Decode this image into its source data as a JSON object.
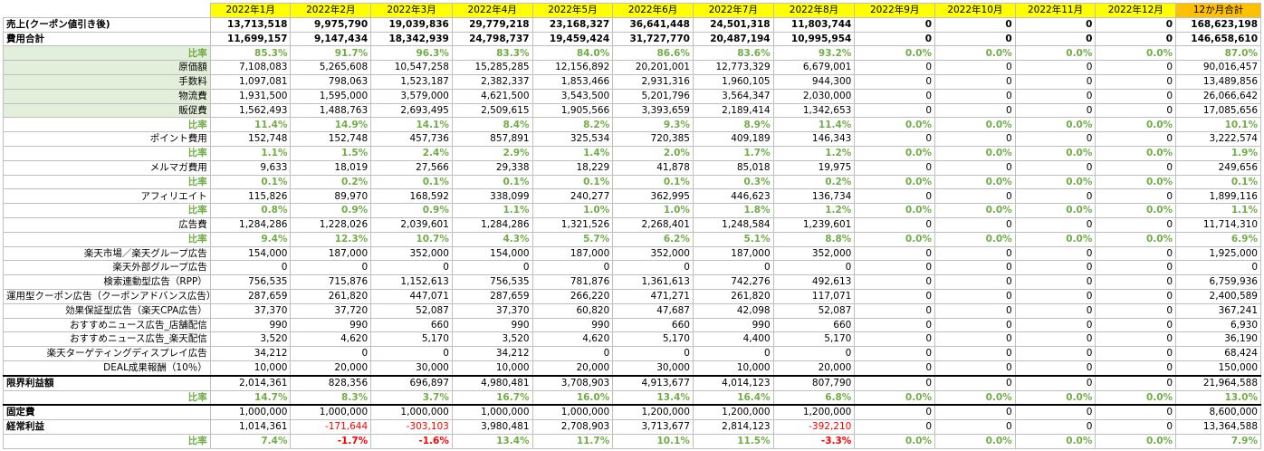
{
  "header": {
    "months": [
      "2022年1月",
      "2022年2月",
      "2022年3月",
      "2022年4月",
      "2022年5月",
      "2022年6月",
      "2022年7月",
      "2022年8月",
      "2022年9月",
      "2022年10月",
      "2022年11月",
      "2022年12月"
    ],
    "total_label": "12か月合計"
  },
  "rows": [
    {
      "label": "売上(クーポン値引き後)",
      "style": "bold left",
      "values": [
        "13,713,518",
        "9,975,790",
        "19,039,836",
        "29,779,218",
        "23,168,327",
        "36,641,448",
        "24,501,318",
        "11,803,744",
        "0",
        "0",
        "0",
        "0"
      ],
      "total": "168,623,198"
    },
    {
      "label": "費用合計",
      "style": "bold left",
      "values": [
        "11,699,157",
        "9,147,434",
        "18,342,939",
        "24,798,737",
        "19,459,424",
        "31,727,770",
        "20,487,194",
        "10,995,954",
        "0",
        "0",
        "0",
        "0"
      ],
      "total": "146,658,610"
    },
    {
      "label": "比率",
      "style": "ratio green",
      "values": [
        "85.3%",
        "91.7%",
        "96.3%",
        "83.3%",
        "84.0%",
        "86.6%",
        "83.6%",
        "93.2%",
        "0.0%",
        "0.0%",
        "0.0%",
        "0.0%"
      ],
      "total": "87.0%"
    },
    {
      "label": "原価額",
      "style": "green",
      "values": [
        "7,108,083",
        "5,265,608",
        "10,547,258",
        "15,285,285",
        "12,156,892",
        "20,201,001",
        "12,773,329",
        "6,679,001",
        "0",
        "0",
        "0",
        "0"
      ],
      "total": "90,016,457"
    },
    {
      "label": "手数料",
      "style": "green",
      "values": [
        "1,097,081",
        "798,063",
        "1,523,187",
        "2,382,337",
        "1,853,466",
        "2,931,316",
        "1,960,105",
        "944,300",
        "0",
        "0",
        "0",
        "0"
      ],
      "total": "13,489,856"
    },
    {
      "label": "物流費",
      "style": "green",
      "values": [
        "1,931,500",
        "1,595,000",
        "3,579,000",
        "4,621,500",
        "3,543,500",
        "5,201,796",
        "3,564,347",
        "2,030,000",
        "0",
        "0",
        "0",
        "0"
      ],
      "total": "26,066,642"
    },
    {
      "label": "販促費",
      "style": "green",
      "values": [
        "1,562,493",
        "1,488,763",
        "2,693,495",
        "2,509,615",
        "1,905,566",
        "3,393,659",
        "2,189,414",
        "1,342,653",
        "0",
        "0",
        "0",
        "0"
      ],
      "total": "17,085,656"
    },
    {
      "label": "比率",
      "style": "ratio",
      "values": [
        "11.4%",
        "14.9%",
        "14.1%",
        "8.4%",
        "8.2%",
        "9.3%",
        "8.9%",
        "11.4%",
        "0.0%",
        "0.0%",
        "0.0%",
        "0.0%"
      ],
      "total": "10.1%"
    },
    {
      "label": "ポイント費用",
      "style": "",
      "values": [
        "152,748",
        "152,748",
        "457,736",
        "857,891",
        "325,534",
        "720,385",
        "409,189",
        "146,343",
        "0",
        "0",
        "0",
        "0"
      ],
      "total": "3,222,574"
    },
    {
      "label": "比率",
      "style": "ratio",
      "values": [
        "1.1%",
        "1.5%",
        "2.4%",
        "2.9%",
        "1.4%",
        "2.0%",
        "1.7%",
        "1.2%",
        "0.0%",
        "0.0%",
        "0.0%",
        "0.0%"
      ],
      "total": "1.9%"
    },
    {
      "label": "メルマガ費用",
      "style": "",
      "values": [
        "9,633",
        "18,019",
        "27,566",
        "29,338",
        "18,229",
        "41,878",
        "85,018",
        "19,975",
        "0",
        "0",
        "0",
        "0"
      ],
      "total": "249,656"
    },
    {
      "label": "比率",
      "style": "ratio",
      "values": [
        "0.1%",
        "0.2%",
        "0.1%",
        "0.1%",
        "0.1%",
        "0.1%",
        "0.3%",
        "0.2%",
        "0.0%",
        "0.0%",
        "0.0%",
        "0.0%"
      ],
      "total": "0.1%"
    },
    {
      "label": "アフィリエイト",
      "style": "",
      "values": [
        "115,826",
        "89,970",
        "168,592",
        "338,099",
        "240,277",
        "362,995",
        "446,623",
        "136,734",
        "0",
        "0",
        "0",
        "0"
      ],
      "total": "1,899,116"
    },
    {
      "label": "比率",
      "style": "ratio",
      "values": [
        "0.8%",
        "0.9%",
        "0.9%",
        "1.1%",
        "1.0%",
        "1.0%",
        "1.8%",
        "1.2%",
        "0.0%",
        "0.0%",
        "0.0%",
        "0.0%"
      ],
      "total": "1.1%"
    },
    {
      "label": "広告費",
      "style": "",
      "values": [
        "1,284,286",
        "1,228,026",
        "2,039,601",
        "1,284,286",
        "1,321,526",
        "2,268,401",
        "1,248,584",
        "1,239,601",
        "0",
        "0",
        "0",
        "0"
      ],
      "total": "11,714,310"
    },
    {
      "label": "比率",
      "style": "ratio",
      "values": [
        "9.4%",
        "12.3%",
        "10.7%",
        "4.3%",
        "5.7%",
        "6.2%",
        "5.1%",
        "8.8%",
        "0.0%",
        "0.0%",
        "0.0%",
        "0.0%"
      ],
      "total": "6.9%"
    },
    {
      "label": "楽天市場／楽天グループ広告",
      "style": "",
      "values": [
        "154,000",
        "187,000",
        "352,000",
        "154,000",
        "187,000",
        "352,000",
        "187,000",
        "352,000",
        "0",
        "0",
        "0",
        "0"
      ],
      "total": "1,925,000"
    },
    {
      "label": "楽天外部グループ広告",
      "style": "",
      "values": [
        "0",
        "0",
        "0",
        "0",
        "0",
        "0",
        "0",
        "0",
        "0",
        "0",
        "0",
        "0"
      ],
      "total": "0"
    },
    {
      "label": "検索連動型広告（RPP）",
      "style": "",
      "values": [
        "756,535",
        "715,876",
        "1,152,613",
        "756,535",
        "781,876",
        "1,361,613",
        "742,276",
        "492,613",
        "0",
        "0",
        "0",
        "0"
      ],
      "total": "6,759,936"
    },
    {
      "label": "運用型クーポン広告（クーポンアドバンス広告）",
      "style": "",
      "values": [
        "287,659",
        "261,820",
        "447,071",
        "287,659",
        "266,220",
        "471,271",
        "261,820",
        "117,071",
        "0",
        "0",
        "0",
        "0"
      ],
      "total": "2,400,589"
    },
    {
      "label": "効果保証型広告（楽天CPA広告）",
      "style": "",
      "values": [
        "37,370",
        "37,720",
        "52,087",
        "37,370",
        "60,820",
        "47,687",
        "42,098",
        "52,087",
        "0",
        "0",
        "0",
        "0"
      ],
      "total": "367,241"
    },
    {
      "label": "おすすめニュース広告_店舗配信",
      "style": "",
      "values": [
        "990",
        "990",
        "660",
        "990",
        "990",
        "660",
        "990",
        "660",
        "0",
        "0",
        "0",
        "0"
      ],
      "total": "6,930"
    },
    {
      "label": "おすすめニュース広告_楽天配信",
      "style": "",
      "values": [
        "3,520",
        "4,620",
        "5,170",
        "3,520",
        "4,620",
        "5,170",
        "4,400",
        "5,170",
        "0",
        "0",
        "0",
        "0"
      ],
      "total": "36,190"
    },
    {
      "label": "楽天ターゲティングディスプレイ広告",
      "style": "",
      "values": [
        "34,212",
        "0",
        "0",
        "34,212",
        "0",
        "0",
        "0",
        "0",
        "0",
        "0",
        "0",
        "0"
      ],
      "total": "68,424"
    },
    {
      "label": "DEAL成果報酬（10％）",
      "style": "",
      "values": [
        "10,000",
        "20,000",
        "30,000",
        "10,000",
        "20,000",
        "30,000",
        "10,000",
        "20,000",
        "0",
        "0",
        "0",
        "0"
      ],
      "total": "150,000"
    },
    {
      "label": "限界利益額",
      "style": "bold-label left sep",
      "values": [
        "2,014,361",
        "828,356",
        "696,897",
        "4,980,481",
        "3,708,903",
        "4,913,677",
        "4,014,123",
        "807,790",
        "0",
        "0",
        "0",
        "0"
      ],
      "total": "21,964,588"
    },
    {
      "label": "比率",
      "style": "ratio",
      "values": [
        "14.7%",
        "8.3%",
        "3.7%",
        "16.7%",
        "16.0%",
        "13.4%",
        "16.4%",
        "6.8%",
        "0.0%",
        "0.0%",
        "0.0%",
        "0.0%"
      ],
      "total": "13.0%"
    },
    {
      "label": "固定費",
      "style": "bold-label left sep",
      "values": [
        "1,000,000",
        "1,000,000",
        "1,000,000",
        "1,000,000",
        "1,000,000",
        "1,200,000",
        "1,200,000",
        "1,200,000",
        "0",
        "0",
        "0",
        "0"
      ],
      "total": "8,600,000"
    },
    {
      "label": "経常利益",
      "style": "bold-label left",
      "values": [
        "1,014,361",
        "-171,644",
        "-303,103",
        "3,980,481",
        "2,708,903",
        "3,713,677",
        "2,814,123",
        "-392,210",
        "0",
        "0",
        "0",
        "0"
      ],
      "total": "13,364,588"
    },
    {
      "label": "比率",
      "style": "ratio",
      "values": [
        "7.4%",
        "-1.7%",
        "-1.6%",
        "13.4%",
        "11.7%",
        "10.1%",
        "11.5%",
        "-3.3%",
        "0.0%",
        "0.0%",
        "0.0%",
        "0.0%"
      ],
      "total": "7.9%"
    }
  ],
  "colors": {
    "header_bg": "#ffff00",
    "total_header_bg": "#ffc000",
    "ratio_text": "#70ad47",
    "negative_text": "#ff0000",
    "label_green_bg": "#e2efda"
  }
}
